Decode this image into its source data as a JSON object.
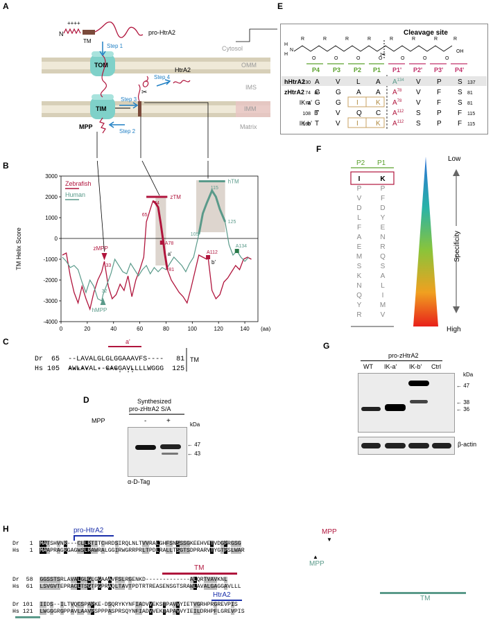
{
  "panels": {
    "A": "A",
    "B": "B",
    "C": "C",
    "D": "D",
    "E": "E",
    "F": "F",
    "G": "G",
    "H": "H"
  },
  "A": {
    "pro_label": "pro-HtrA2",
    "tm_label": "TM",
    "n_label": "N",
    "charges": "++++",
    "step1": "Step 1",
    "step2": "Step 2",
    "step3": "Step 3",
    "step4": "Step 4",
    "tom": "TOM",
    "tim": "TIM",
    "mpp": "MPP",
    "htra2": "HtrA2",
    "cytosol": "Cytosol",
    "omm": "OMM",
    "ims": "IMS",
    "imm": "IMM",
    "matrix": "Matrix",
    "colors": {
      "protein": "#b0143c",
      "tm_box": "#7a4a3a",
      "membrane": "#d7cfb8",
      "imm_band": "#e8c4c4",
      "tom": "#7fd1c9",
      "step": "#1f7fc4"
    }
  },
  "B": {
    "ylabel": "TM Helix Score",
    "xunit": "(aa)",
    "legend": [
      {
        "name": "Zebrafish",
        "color": "#b0143c"
      },
      {
        "name": "Human",
        "color": "#5a9a8a"
      }
    ],
    "labels": {
      "zTM": "zTM",
      "hTM": "hTM",
      "zMPP": "zMPP",
      "hMPP": "hMPP",
      "a1": "a'",
      "b1": "b'",
      "A78": "A78",
      "A112": "A112",
      "A134": "A134",
      "n74": "74",
      "n65": "65",
      "n81": "81",
      "n33": "33",
      "n32": "32",
      "n105": "105",
      "n115": "115",
      "n125": "125"
    }
  },
  "chart_data": {
    "type": "line",
    "xlabel": "(aa)",
    "ylabel": "TM Helix Score",
    "xlim": [
      0,
      150
    ],
    "ylim": [
      -4000,
      3000
    ],
    "xticks": [
      0,
      20,
      40,
      60,
      80,
      100,
      120,
      140
    ],
    "yticks": [
      -4000,
      -3000,
      -2000,
      -1000,
      0,
      1000,
      2000,
      3000
    ],
    "series": [
      {
        "name": "Zebrafish",
        "color": "#b0143c",
        "x": [
          1,
          4,
          7,
          10,
          13,
          16,
          19,
          22,
          25,
          28,
          31,
          33,
          36,
          39,
          42,
          45,
          48,
          51,
          54,
          57,
          60,
          63,
          65,
          68,
          70,
          72,
          74,
          76,
          78,
          79,
          81,
          84,
          87,
          90,
          93,
          96,
          99,
          102,
          105,
          108,
          111,
          112,
          115,
          118,
          121,
          124,
          127,
          130,
          133,
          136,
          139,
          142,
          145
        ],
        "y": [
          -800,
          -700,
          -1800,
          -2600,
          -3100,
          -2300,
          -2900,
          -3400,
          -2600,
          -2000,
          -1600,
          -1100,
          -2300,
          -2900,
          -2700,
          -2200,
          -2500,
          -1800,
          -2800,
          -2000,
          -1500,
          -900,
          800,
          1400,
          1800,
          1700,
          1500,
          700,
          -200,
          -700,
          -1500,
          -2000,
          -2300,
          -2600,
          -2800,
          -3100,
          -2400,
          -1600,
          -800,
          -900,
          -1000,
          -900,
          -2500,
          -2900,
          -2700,
          -2100,
          -1900,
          -1600,
          -1300,
          -1500,
          -1000,
          -900,
          -1000
        ]
      },
      {
        "name": "Human",
        "color": "#5a9a8a",
        "x": [
          1,
          4,
          7,
          10,
          13,
          16,
          19,
          22,
          25,
          28,
          31,
          32,
          35,
          38,
          41,
          44,
          47,
          50,
          53,
          56,
          59,
          62,
          65,
          68,
          71,
          74,
          77,
          80,
          83,
          86,
          89,
          92,
          95,
          98,
          101,
          105,
          108,
          111,
          115,
          118,
          121,
          125,
          128,
          131,
          134,
          137,
          140,
          143
        ],
        "y": [
          -900,
          -1100,
          -1400,
          -1300,
          -1500,
          -2100,
          -2600,
          -2000,
          -2300,
          -2900,
          -3000,
          -2700,
          -2200,
          -1700,
          -1000,
          -1300,
          -1600,
          -1700,
          -1200,
          -1500,
          -1800,
          -1500,
          -1300,
          -1700,
          -1400,
          -1600,
          -1400,
          -1500,
          -1200,
          -900,
          -1100,
          -1300,
          -1600,
          -1200,
          -900,
          200,
          1200,
          1700,
          2300,
          2000,
          1400,
          800,
          -300,
          -800,
          -600,
          -900,
          -1100,
          -900
        ]
      }
    ],
    "annotations": [
      "zTM",
      "hTM",
      "zMPP",
      "hMPP",
      "a'",
      "b'",
      "A78",
      "A112",
      "A134"
    ]
  },
  "C": {
    "rows": [
      {
        "species": "Dr",
        "start": "65",
        "seq": "--LAVALGLGLGGAAAVFS----",
        "end": "81"
      },
      {
        "species": "Hs",
        "start": "105",
        "seq": "AWLAVAL--GAGGAVLLLLWGGG",
        "end": "125"
      }
    ],
    "consensus": "*****  * ***. ::",
    "site": "a'",
    "tm": "TM"
  },
  "D": {
    "title1": "Synthesized",
    "title2": "pro-zHtrA2 S/A",
    "mpp": "MPP",
    "minus": "-",
    "plus": "+",
    "kda": "kDa",
    "m47": "47",
    "m43": "43",
    "antibody": "α-D-Tag"
  },
  "E": {
    "title": "Cleavage site",
    "positions_left": [
      "P4",
      "P3",
      "P2",
      "P1"
    ],
    "positions_right": [
      "P1'",
      "P2'",
      "P3'",
      "P4'"
    ],
    "rows": [
      {
        "label": "hHtrA2",
        "pre": "",
        "start": "130",
        "res": [
          "A",
          "V",
          "L",
          "A",
          "A134",
          "V",
          "P",
          "S"
        ],
        "end": "137"
      },
      {
        "label": "zHtrA2",
        "pre": "a'",
        "start": "74",
        "res": [
          "G",
          "G",
          "A",
          "A",
          "A78",
          "V",
          "F",
          "S"
        ],
        "end": "81"
      },
      {
        "label": "",
        "pre": "IK-a'",
        "start": "74",
        "res": [
          "G",
          "G",
          "I",
          "K",
          "A78",
          "V",
          "F",
          "S"
        ],
        "end": "81"
      },
      {
        "label": "",
        "pre": "b'",
        "start": "108",
        "res": [
          "T",
          "V",
          "Q",
          "C",
          "A112",
          "S",
          "P",
          "F"
        ],
        "end": "115"
      },
      {
        "label": "",
        "pre": "IK-b'",
        "start": "108",
        "res": [
          "T",
          "V",
          "I",
          "K",
          "A112",
          "S",
          "P",
          "F"
        ],
        "end": "115"
      }
    ],
    "chem": {
      "R": "R",
      "O": "O",
      "H": "H",
      "N": "N",
      "OH": "OH"
    }
  },
  "F": {
    "p2": "P2",
    "p1": "P1",
    "pairs": [
      [
        "I",
        "K"
      ],
      [
        "P",
        "P"
      ],
      [
        "V",
        "F"
      ],
      [
        "D",
        "D"
      ],
      [
        "L",
        "Y"
      ],
      [
        "F",
        "E"
      ],
      [
        "A",
        "N"
      ],
      [
        "E",
        "R"
      ],
      [
        "M",
        "Q"
      ],
      [
        "S",
        "S"
      ],
      [
        "K",
        "A"
      ],
      [
        "N",
        "L"
      ],
      [
        "Q",
        "I"
      ],
      [
        "Y",
        "M"
      ],
      [
        "R",
        "V"
      ]
    ],
    "low": "Low",
    "high": "High",
    "specificity": "Specificity"
  },
  "G": {
    "title": "pro-zHtrA2",
    "lanes": [
      "WT",
      "IK-a'",
      "IK-b'",
      "Ctrl"
    ],
    "kda": "kDa",
    "m47": "47",
    "m38": "38",
    "m36": "36",
    "loading": "β-actin"
  },
  "H": {
    "pro_label": "pro-HtrA2",
    "htra2_label": "HtrA2",
    "mpp_dr": "MPP",
    "mpp_hs": "MPP",
    "tm_dr": "TM",
    "tm_hs": "TM",
    "blocks": [
      [
        {
          "sp": "Dr",
          "n": "1",
          "seq": "MATSHVNR---CLLRTITCHRDSIRQLNLTVVRALGHFSNSSSGKEEHVETVDGPRGSG"
        },
        {
          "sp": "Hs",
          "n": "1",
          "seq": "MAAPRAGRGAGWSLRAWRALGGIRWGRRPRLTPDLRALLTSGTSDPRARVTYGTPSLWAR"
        }
      ],
      [
        {
          "sp": "Dr",
          "n": "58",
          "seq": "GGSSTSRLAVALGLGLGGAAAVFSLRGENKD-------------ALQRTVAVKNL"
        },
        {
          "sp": "Hs",
          "n": "61",
          "seq": "LSVGVTEPRACLTSGTPGPRAQLTAVTPDTRTREASENSGTSRAWLAVALGAGGAVLLL"
        }
      ],
      [
        {
          "sp": "Dr",
          "n": "101",
          "seq": "IIDS--ILTVQCSPAPKE-DSQRYKYNFIADVVEKSTPAVVYIETVGRHPRGREVPIS"
        },
        {
          "sp": "Hs",
          "n": "121",
          "seq": "LWGGGRGPPAVLAAVPSPPPASPRSQYNFIADVVEKTAPAVVYIEILDRHPFLGREVPIS"
        }
      ]
    ]
  }
}
